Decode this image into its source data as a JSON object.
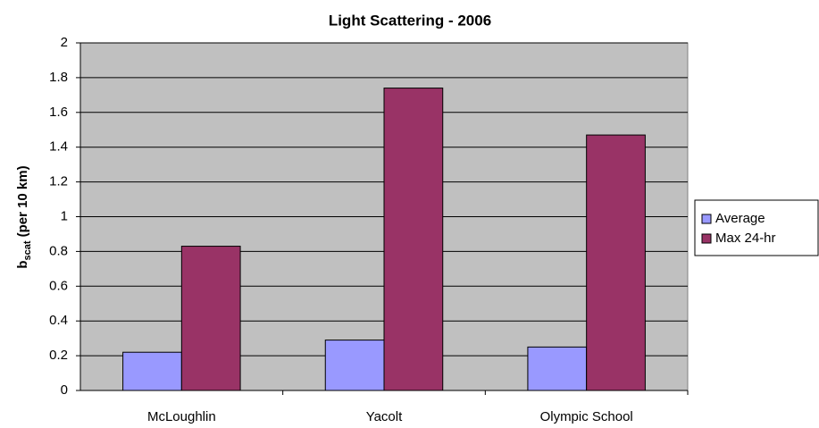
{
  "chart_data": {
    "type": "bar",
    "title": "Light Scattering - 2006",
    "y_label": {
      "main": "b",
      "sub": "scat",
      "rest": "(per 10 km)"
    },
    "categories": [
      "McLoughlin",
      "Yacolt",
      "Olympic School"
    ],
    "series": [
      {
        "name": "Average",
        "color": "#9999ff",
        "values": [
          0.22,
          0.29,
          0.25
        ]
      },
      {
        "name": "Max 24-hr",
        "color": "#993366",
        "values": [
          0.83,
          1.74,
          1.47
        ]
      }
    ],
    "ylim": [
      0,
      2
    ],
    "yticks": [
      0,
      0.2,
      0.4,
      0.6,
      0.8,
      1,
      1.2,
      1.4,
      1.6,
      1.8,
      2
    ],
    "grid": true,
    "legend": "right",
    "plot_background": "#c0c0c0"
  }
}
